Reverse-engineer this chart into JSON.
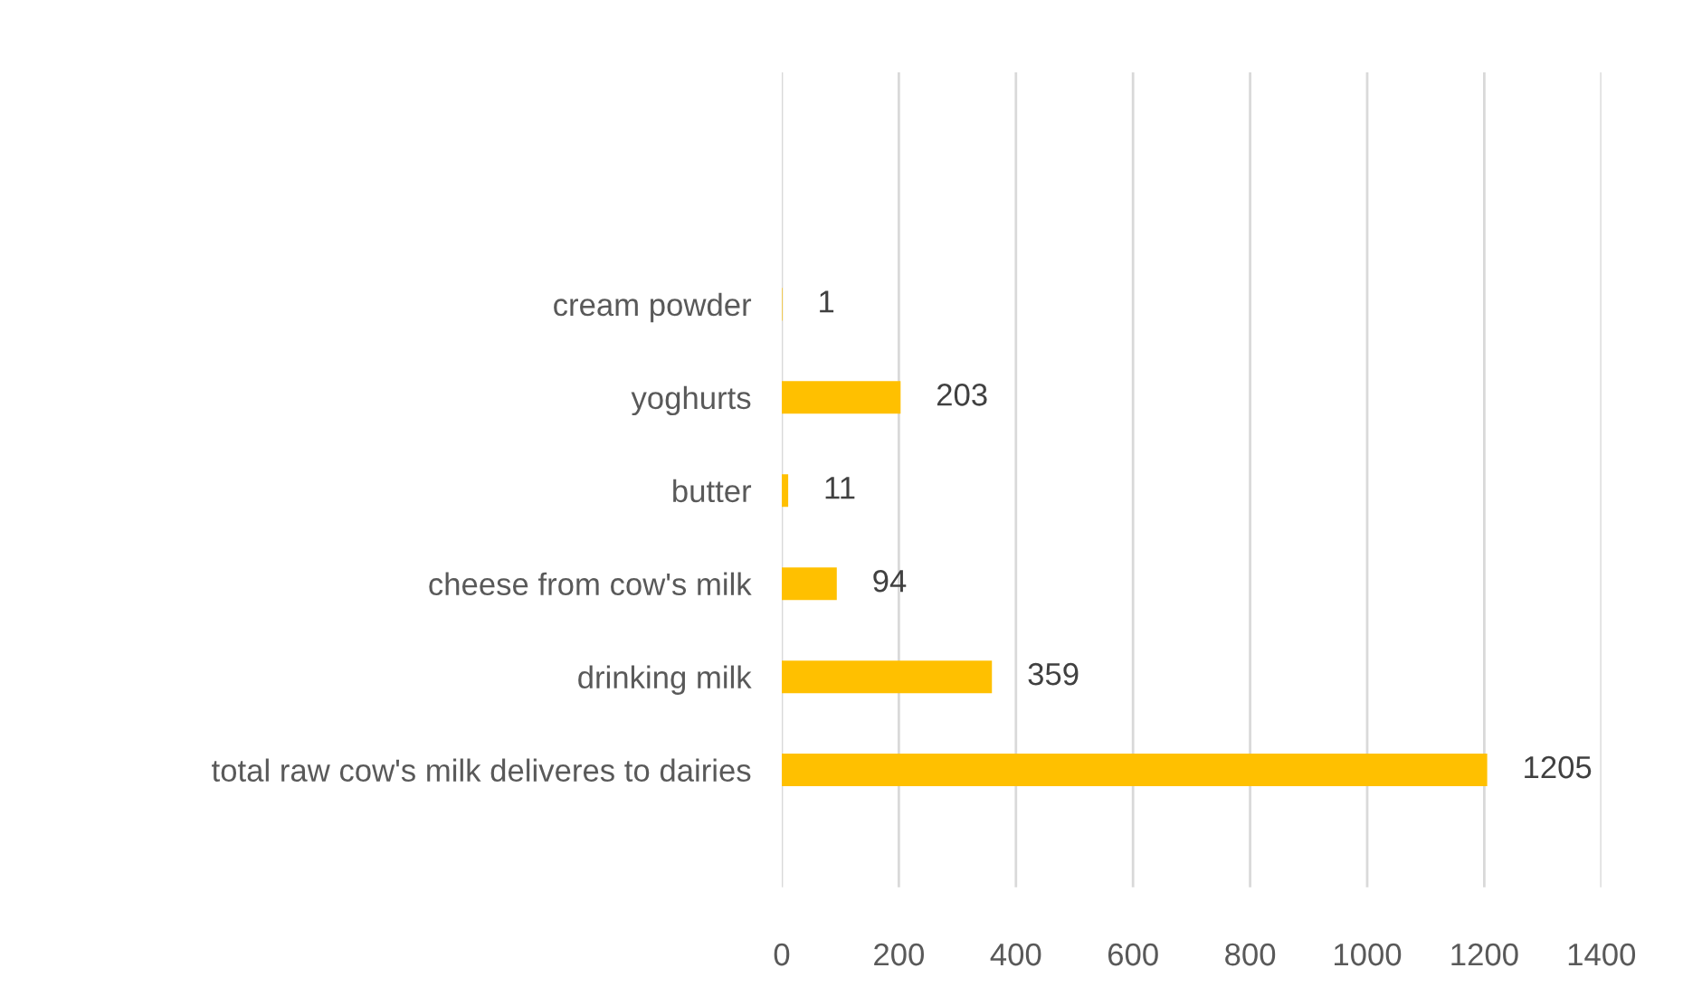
{
  "chart_data": {
    "type": "bar",
    "orientation": "horizontal",
    "categories": [
      "cream powder",
      "yoghurts",
      "butter",
      "cheese from cow's milk",
      "drinking milk",
      "total raw cow's milk deliveres to dairies"
    ],
    "values": [
      1,
      203,
      11,
      94,
      359,
      1205
    ],
    "color": "#ffc000",
    "xlim": [
      0,
      1400
    ],
    "xticks": [
      0,
      200,
      400,
      600,
      800,
      1000,
      1200,
      1400
    ],
    "grid": "x",
    "data_labels": true
  }
}
